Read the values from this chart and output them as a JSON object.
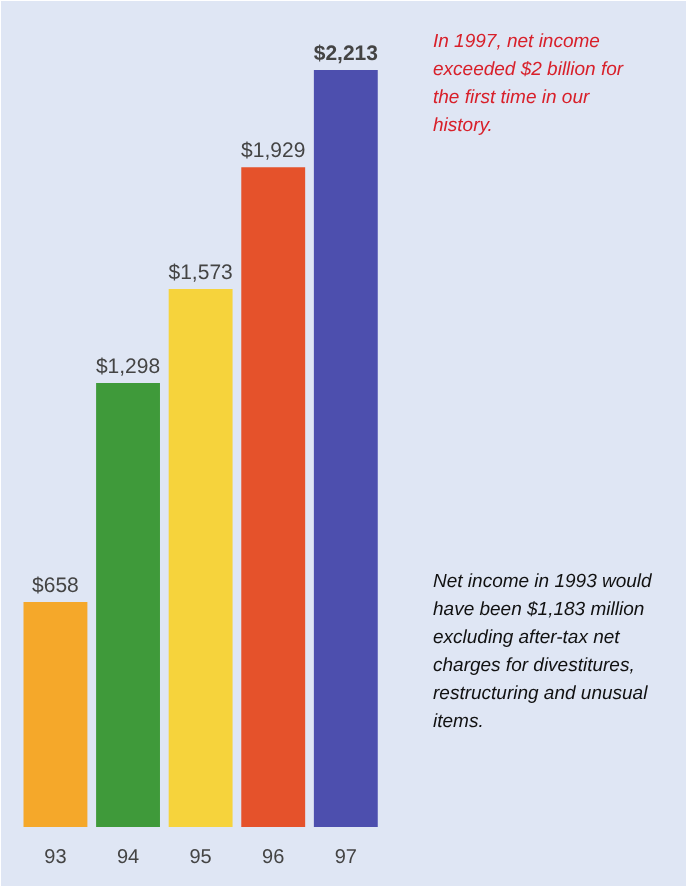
{
  "chart_data": {
    "type": "bar",
    "categories": [
      "93",
      "94",
      "95",
      "96",
      "97"
    ],
    "values": [
      658,
      1298,
      1573,
      1929,
      2213
    ],
    "colors": [
      "#f5a82a",
      "#3f9a3a",
      "#f6d33c",
      "#e5522b",
      "#4d4fae"
    ],
    "value_labels": [
      "$658",
      "$1,298",
      "$1,573",
      "$1,929",
      "$2,213"
    ],
    "annotations": [
      "In 1997, net income exceeded $2 billion for the first time in our history.",
      "Net income in 1993 would have been $1,183 million excluding after-tax net charges for divestitures, restructuring and unusual items."
    ]
  }
}
